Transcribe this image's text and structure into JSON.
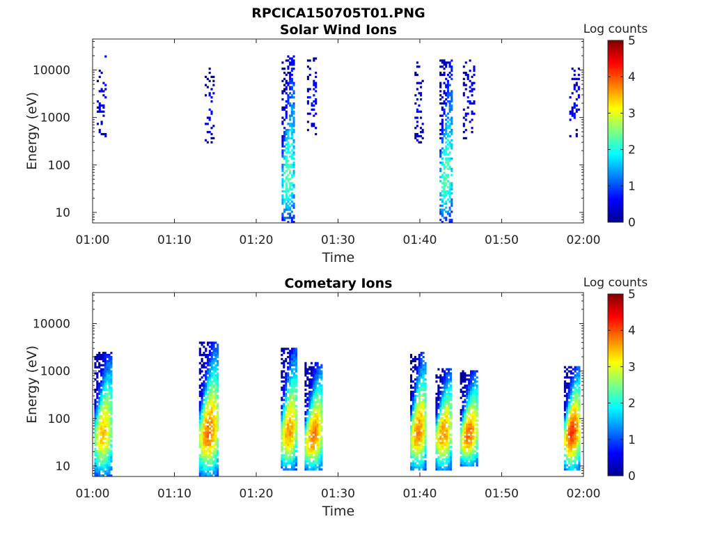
{
  "figure": {
    "title": "RPCICA150705T01.PNG"
  },
  "colors": {
    "colormap": "jet",
    "colormap_stops": [
      "#00008f",
      "#0000ff",
      "#0080ff",
      "#00ffff",
      "#80ff80",
      "#ffff00",
      "#ff8000",
      "#ff0000",
      "#800000"
    ],
    "axis": "#222222"
  },
  "chart_data": [
    {
      "type": "heatmap",
      "title": "Solar Wind Ions",
      "xlabel": "Time",
      "ylabel": "Energy (eV)",
      "xlim": [
        "01:00",
        "02:00"
      ],
      "xticks": [
        "01:00",
        "01:10",
        "01:20",
        "01:30",
        "01:40",
        "01:50",
        "02:00"
      ],
      "yscale": "log",
      "ylim": [
        6,
        45000
      ],
      "yticks": [
        10,
        100,
        1000,
        10000
      ],
      "ytick_labels": [
        "10",
        "100",
        "1000",
        "10000"
      ],
      "colorbar": {
        "label": "Log counts",
        "range": [
          0,
          5
        ],
        "ticks": [
          "0",
          "1",
          "2",
          "3",
          "4",
          "5"
        ]
      },
      "bursts": [
        {
          "time_min": 1.1,
          "width_min": 1.2,
          "e_low": 400,
          "e_high": 20000,
          "peak_energy": 3000,
          "peak_log_counts": 0.6,
          "tail_low": 0,
          "density": 0.35
        },
        {
          "time_min": 14.3,
          "width_min": 1.2,
          "e_low": 300,
          "e_high": 11000,
          "peak_energy": 2000,
          "peak_log_counts": 0.6,
          "tail_low": 0,
          "density": 0.3
        },
        {
          "time_min": 23.9,
          "width_min": 1.6,
          "e_low": 6,
          "e_high": 20000,
          "peak_energy": 50,
          "peak_log_counts": 2.3,
          "tail_low": 6,
          "density": 0.55
        },
        {
          "time_min": 26.8,
          "width_min": 1.2,
          "e_low": 400,
          "e_high": 18000,
          "peak_energy": 3000,
          "peak_log_counts": 0.7,
          "tail_low": 0,
          "density": 0.35
        },
        {
          "time_min": 39.9,
          "width_min": 1.1,
          "e_low": 300,
          "e_high": 15000,
          "peak_energy": 2000,
          "peak_log_counts": 0.6,
          "tail_low": 0,
          "density": 0.3
        },
        {
          "time_min": 43.2,
          "width_min": 1.6,
          "e_low": 6,
          "e_high": 16000,
          "peak_energy": 50,
          "peak_log_counts": 2.3,
          "tail_low": 6,
          "density": 0.55
        },
        {
          "time_min": 46.0,
          "width_min": 1.5,
          "e_low": 350,
          "e_high": 17000,
          "peak_energy": 3000,
          "peak_log_counts": 0.6,
          "tail_low": 0,
          "density": 0.32
        },
        {
          "time_min": 58.9,
          "width_min": 1.3,
          "e_low": 400,
          "e_high": 11000,
          "peak_energy": 2000,
          "peak_log_counts": 0.6,
          "tail_low": 0,
          "density": 0.35
        }
      ]
    },
    {
      "type": "heatmap",
      "title": "Cometary Ions",
      "xlabel": "Time",
      "ylabel": "Energy (eV)",
      "xlim": [
        "01:00",
        "02:00"
      ],
      "xticks": [
        "01:00",
        "01:10",
        "01:20",
        "01:30",
        "01:40",
        "01:50",
        "02:00"
      ],
      "yscale": "log",
      "ylim": [
        6,
        45000
      ],
      "yticks": [
        10,
        100,
        1000,
        10000
      ],
      "ytick_labels": [
        "10",
        "100",
        "1000",
        "10000"
      ],
      "colorbar": {
        "label": "Log counts",
        "range": [
          0,
          5
        ],
        "ticks": [
          "0",
          "1",
          "2",
          "3",
          "4",
          "5"
        ]
      },
      "bursts": [
        {
          "time_min": 1.3,
          "width_min": 2.2,
          "e_low": 6,
          "e_high": 2500,
          "peak_energy": 50,
          "peak_log_counts": 3.4,
          "tail_low": 6,
          "density": 0.85
        },
        {
          "time_min": 14.2,
          "width_min": 2.4,
          "e_low": 6,
          "e_high": 4000,
          "peak_energy": 50,
          "peak_log_counts": 3.8,
          "tail_low": 6,
          "density": 0.85
        },
        {
          "time_min": 24.0,
          "width_min": 2.0,
          "e_low": 8,
          "e_high": 3200,
          "peak_energy": 50,
          "peak_log_counts": 3.6,
          "tail_low": 8,
          "density": 0.85
        },
        {
          "time_min": 27.0,
          "width_min": 2.2,
          "e_low": 8,
          "e_high": 1500,
          "peak_energy": 40,
          "peak_log_counts": 3.8,
          "tail_low": 8,
          "density": 0.85
        },
        {
          "time_min": 39.8,
          "width_min": 2.0,
          "e_low": 8,
          "e_high": 2500,
          "peak_energy": 50,
          "peak_log_counts": 3.7,
          "tail_low": 8,
          "density": 0.85
        },
        {
          "time_min": 42.9,
          "width_min": 2.0,
          "e_low": 8,
          "e_high": 1100,
          "peak_energy": 50,
          "peak_log_counts": 3.7,
          "tail_low": 8,
          "density": 0.85
        },
        {
          "time_min": 46.0,
          "width_min": 2.2,
          "e_low": 10,
          "e_high": 1000,
          "peak_energy": 45,
          "peak_log_counts": 3.8,
          "tail_low": 10,
          "density": 0.85
        },
        {
          "time_min": 58.6,
          "width_min": 2.0,
          "e_low": 8,
          "e_high": 1300,
          "peak_energy": 50,
          "peak_log_counts": 4.1,
          "tail_low": 8,
          "density": 0.85
        }
      ]
    }
  ]
}
